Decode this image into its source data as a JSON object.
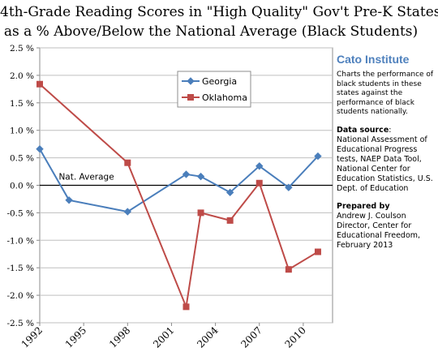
{
  "chart_data": {
    "type": "line",
    "title_lines": [
      "4th-Grade Reading Scores in \"High Quality\" Gov't Pre-K States,",
      "as a % Above/Below the National Average (Black Students)"
    ],
    "x_ticks": [
      "1992",
      "1995",
      "1998",
      "2001",
      "2004",
      "2007",
      "2010"
    ],
    "xlim": [
      1992,
      2012
    ],
    "ylim": [
      -2.5,
      2.5
    ],
    "y_ticks": [
      "2.5 %",
      "2.0 %",
      "1.5 %",
      "1.0 %",
      "0.5 %",
      "0.0 %",
      "-0.5 %",
      "-1.0 %",
      "-1.5 %",
      "-2.0 %",
      "-2.5 %"
    ],
    "y_tick_values": [
      2.5,
      2.0,
      1.5,
      1.0,
      0.5,
      0.0,
      -0.5,
      -1.0,
      -1.5,
      -2.0,
      -2.5
    ],
    "grid": "horizontal",
    "baseline_label": "Nat. Average",
    "legend_position": "top-center",
    "series": [
      {
        "name": "Georgia",
        "color": "#4a7ebb",
        "marker": "diamond",
        "x": [
          1992,
          1994,
          1998,
          2002,
          2003,
          2005,
          2007,
          2009,
          2011
        ],
        "y": [
          0.66,
          -0.27,
          -0.48,
          0.2,
          0.16,
          -0.13,
          0.35,
          -0.04,
          0.53
        ]
      },
      {
        "name": "Oklahoma",
        "color": "#be4b48",
        "marker": "square",
        "x": [
          1992,
          1998,
          2002,
          2003,
          2005,
          2007,
          2009,
          2011
        ],
        "y": [
          1.84,
          0.41,
          -2.21,
          -0.5,
          -0.64,
          0.04,
          -1.53,
          -1.21
        ]
      }
    ]
  },
  "sidebar": {
    "org": "Cato Institute",
    "description": "Charts the performance of black students in these states against the performance of black students nationally.",
    "source_label": "Data source",
    "source_colon": ":",
    "source_text": "National Assessment of Educational Progress tests, NAEP Data Tool, National Center for Education Statistics, U.S. Dept. of Education",
    "prepared_label": "Prepared by",
    "prepared_text": "Andrew J. Coulson Director, Center for Educational Freedom, February 2013"
  }
}
